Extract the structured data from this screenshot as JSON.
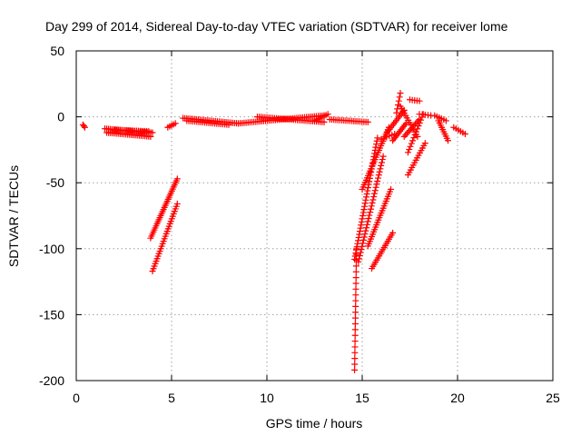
{
  "chart_data": {
    "type": "scatter",
    "title": "Day 299 of 2014, Sidereal Day-to-day VTEC variation (SDTVAR) for receiver lome",
    "xlabel": "GPS time / hours",
    "ylabel": "SDTVAR / TECUs",
    "xlim": [
      0,
      25
    ],
    "ylim": [
      -200,
      50
    ],
    "x_ticks": [
      "0",
      "5",
      "10",
      "15",
      "20",
      "25"
    ],
    "y_ticks": [
      "50",
      "0",
      "-50",
      "-100",
      "-150",
      "-200"
    ],
    "grid": true,
    "marker": "plus",
    "series_color": "#ff0000",
    "segments": [
      {
        "x0": 0.35,
        "y0": -6,
        "x1": 0.45,
        "y1": -8,
        "n": 3
      },
      {
        "x0": 1.5,
        "y0": -9,
        "x1": 4.0,
        "y1": -12,
        "n": 28
      },
      {
        "x0": 1.6,
        "y0": -12,
        "x1": 3.9,
        "y1": -15,
        "n": 24
      },
      {
        "x0": 2.0,
        "y0": -10,
        "x1": 3.8,
        "y1": -11,
        "n": 18
      },
      {
        "x0": 4.8,
        "y0": -8,
        "x1": 5.2,
        "y1": -5,
        "n": 5
      },
      {
        "x0": 5.6,
        "y0": -1,
        "x1": 8.5,
        "y1": -5,
        "n": 30
      },
      {
        "x0": 5.8,
        "y0": -3,
        "x1": 8.0,
        "y1": -6,
        "n": 22
      },
      {
        "x0": 8.5,
        "y0": -5,
        "x1": 13.0,
        "y1": 1,
        "n": 45
      },
      {
        "x0": 9.5,
        "y0": 0,
        "x1": 13.0,
        "y1": -4,
        "n": 36
      },
      {
        "x0": 12.5,
        "y0": -3,
        "x1": 13.2,
        "y1": 2,
        "n": 8
      },
      {
        "x0": 13.3,
        "y0": -2,
        "x1": 15.3,
        "y1": -4,
        "n": 20
      },
      {
        "x0": 3.9,
        "y0": -92,
        "x1": 5.3,
        "y1": -47,
        "n": 30
      },
      {
        "x0": 4.0,
        "y0": -117,
        "x1": 5.3,
        "y1": -66,
        "n": 28
      },
      {
        "x0": 14.6,
        "y0": -192,
        "x1": 14.7,
        "y1": -100,
        "n": 22
      },
      {
        "x0": 14.6,
        "y0": -108,
        "x1": 15.8,
        "y1": -16,
        "n": 40
      },
      {
        "x0": 14.8,
        "y0": -110,
        "x1": 16.1,
        "y1": -30,
        "n": 35
      },
      {
        "x0": 15.0,
        "y0": -55,
        "x1": 16.4,
        "y1": -8,
        "n": 28
      },
      {
        "x0": 15.3,
        "y0": -98,
        "x1": 16.5,
        "y1": -55,
        "n": 25
      },
      {
        "x0": 15.5,
        "y0": -115,
        "x1": 16.6,
        "y1": -88,
        "n": 18
      },
      {
        "x0": 16.0,
        "y0": -17,
        "x1": 16.7,
        "y1": -13,
        "n": 6
      },
      {
        "x0": 16.3,
        "y0": -12,
        "x1": 17.2,
        "y1": 5,
        "n": 14
      },
      {
        "x0": 16.6,
        "y0": -18,
        "x1": 17.3,
        "y1": -5,
        "n": 12
      },
      {
        "x0": 16.8,
        "y0": 3,
        "x1": 17.0,
        "y1": 18,
        "n": 6
      },
      {
        "x0": 17.0,
        "y0": 8,
        "x1": 17.9,
        "y1": -15,
        "n": 14
      },
      {
        "x0": 17.2,
        "y0": -15,
        "x1": 18.0,
        "y1": -2,
        "n": 12
      },
      {
        "x0": 17.4,
        "y0": -27,
        "x1": 18.2,
        "y1": 2,
        "n": 14
      },
      {
        "x0": 17.4,
        "y0": -44,
        "x1": 18.3,
        "y1": -20,
        "n": 14
      },
      {
        "x0": 17.5,
        "y0": 13,
        "x1": 18.0,
        "y1": 12,
        "n": 5
      },
      {
        "x0": 18.0,
        "y0": 2,
        "x1": 18.6,
        "y1": 1,
        "n": 5
      },
      {
        "x0": 18.8,
        "y0": 1,
        "x1": 19.4,
        "y1": -3,
        "n": 6
      },
      {
        "x0": 19.0,
        "y0": -3,
        "x1": 19.5,
        "y1": -18,
        "n": 10
      },
      {
        "x0": 19.8,
        "y0": -8,
        "x1": 20.4,
        "y1": -13,
        "n": 6
      }
    ]
  }
}
